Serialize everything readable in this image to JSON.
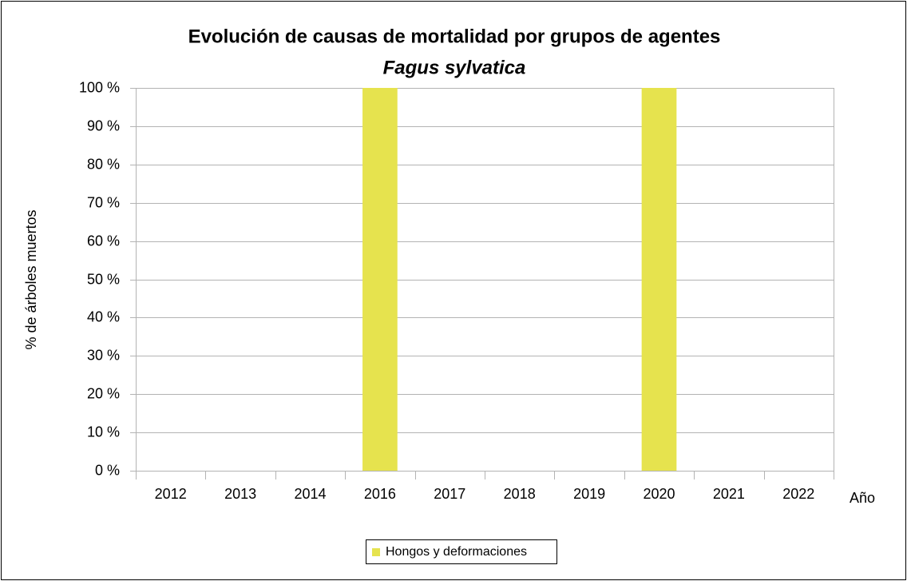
{
  "chart_data": {
    "type": "bar",
    "title": "Evolución de causas de mortalidad por grupos de agentes",
    "subtitle": "Fagus sylvatica",
    "y_label": "% de árboles muertos",
    "x_label": "Año",
    "categories": [
      "2012",
      "2013",
      "2014",
      "2016",
      "2017",
      "2018",
      "2019",
      "2020",
      "2021",
      "2022"
    ],
    "series": [
      {
        "name": "Hongos y deformaciones",
        "color": "#e6e34e",
        "values": [
          0,
          0,
          0,
          100,
          0,
          0,
          0,
          100,
          0,
          0
        ]
      }
    ],
    "ylim": [
      0,
      100
    ],
    "yticks": [
      {
        "value": 0,
        "label": "0 %"
      },
      {
        "value": 10,
        "label": "10 %"
      },
      {
        "value": 20,
        "label": "20 %"
      },
      {
        "value": 30,
        "label": "30 %"
      },
      {
        "value": 40,
        "label": "40 %"
      },
      {
        "value": 50,
        "label": "50 %"
      },
      {
        "value": 60,
        "label": "60 %"
      },
      {
        "value": 70,
        "label": "70 %"
      },
      {
        "value": 80,
        "label": "80 %"
      },
      {
        "value": 90,
        "label": "90 %"
      },
      {
        "value": 100,
        "label": "100 %"
      }
    ],
    "grid": true,
    "legend": "bottom"
  }
}
